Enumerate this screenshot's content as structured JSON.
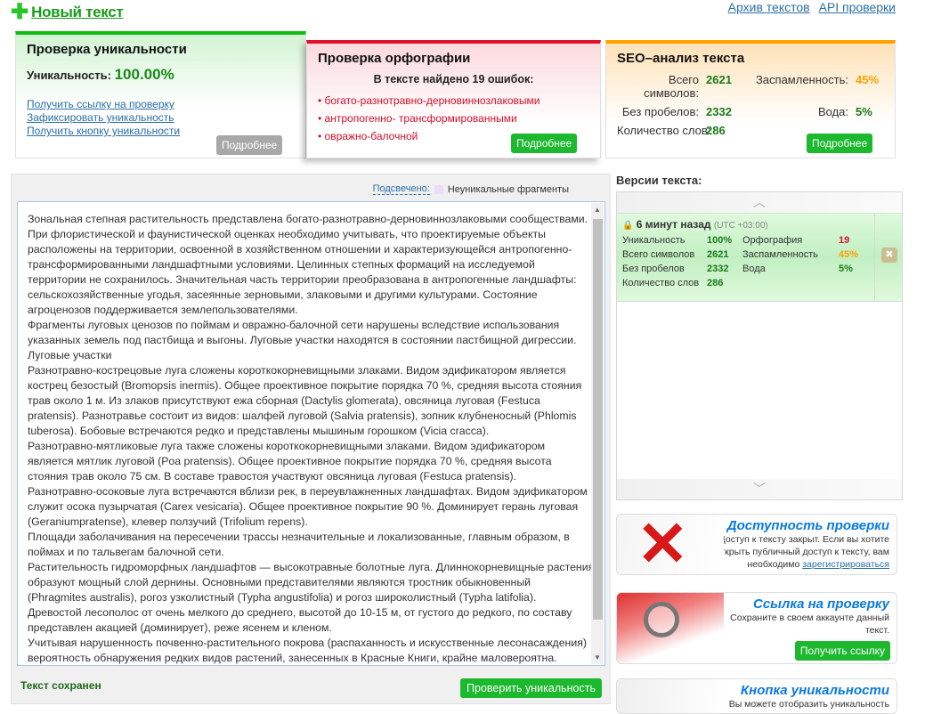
{
  "header": {
    "new_text": "Новый текст",
    "links": [
      "Архив текстов",
      "API проверки"
    ]
  },
  "uniqueness_card": {
    "title": "Проверка уникальности",
    "label": "Уникальность:",
    "value": "100.00%",
    "links": [
      "Получить ссылку на проверку",
      "Зафиксировать уникальность",
      "Получить кнопку уникальности"
    ],
    "more": "Подробнее"
  },
  "spelling_card": {
    "title": "Проверка орфографии",
    "summary": "В тексте найдено 19 ошибок:",
    "errors": [
      "богато-разнотравно-дерновиннозлаковыми",
      "антропогенно- трансформированными",
      "овражно-балочной"
    ],
    "more": "Подробнее"
  },
  "seo_card": {
    "title": "SEO–анализ текста",
    "total_label": "Всего символов:",
    "total": "2621",
    "spam_label": "Заспамленность:",
    "spam": "45%",
    "nospace_label": "Без пробелов:",
    "nospace": "2332",
    "water_label": "Вода:",
    "water": "5%",
    "words_label": "Количество слов:",
    "words": "286",
    "more": "Подробнее"
  },
  "editor": {
    "highlight_label": "Подсвечено:",
    "highlight_legend": "Неуникальные фрагменты",
    "highlight_color": "#ecdcfa",
    "lines": [
      "Зональная степная растительность представлена богато-разнотравно-дерновиннозлаковыми сообществами.",
      "При флористической и фаунистической оценках необходимо учитывать, что проектируемые объекты",
      "расположены на территории, освоенной в хозяйственном отношении и характеризующейся антропогенно-",
      "трансформированными ландшафтными условиями. Целинных степных формаций на исследуемой",
      "территории не сохранилось. Значительная часть территории преобразована в антропогенные ландшафты:",
      "сельскохозяйственные угодья, засеянные зерновыми, злаковыми и другими культурами. Состояние",
      "агроценозов поддерживается землепользователями.",
      "Фрагменты луговых ценозов по поймам и овражно-балочной сети нарушены вследствие использования",
      "указанных земель под пастбища и выгоны. Луговые участки находятся в состоянии пастбищной дигрессии.",
      "Луговые участки",
      "Разнотравно-кострецовые луга сложены короткокорневищными злаками. Видом эдификатором является",
      "кострец безостый (Bromopsis inermis). Общее проективное покрытие порядка 70 %, средняя высота стояния",
      "трав около 1 м. Из злаков присутствуют ежа сборная (Dactylis glomerata), овсяница луговая (Festuca",
      "pratensis). Разнотравье состоит из видов: шалфей луговой (Salvia pratensis), зопник клубненосный (Phlomis",
      "tuberosa). Бобовые встречаются редко и представлены мышиным горошком (Vicia cracca).",
      "Разнотравно-мятликовые луга также сложены короткокорневищными злаками. Видом эдификатором",
      "является мятлик луговой (Poa pratensis). Общее проективное покрытие порядка 70 %, средняя высота",
      "стояния трав около 75 см. В составе травостоя участвуют овсяница луговая (Festuca pratensis).",
      "Разнотравно-осоковые луга встречаются вблизи рек, в переувлажненных ландшафтах. Видом эдификатором",
      "служит осока пузырчатая (Carex vesicaria). Общее проективное покрытие 90 %. Доминирует герань луговая",
      "(Geraniumpratense), клевер ползучий (Trifolium repens).",
      "Площади заболачивания на пересечении трассы незначительные и локализованные, главным образом, в",
      "поймах и по тальвегам балочной сети.",
      "Растительность гидроморфных ландшафтов — высокотравные болотные луга. Длиннокорневищные растения",
      "образуют мощный слой дернины. Основными представителями являются тростник обыкновенный",
      "(Phragmites australis), рогоз узколистный (Typha angustifolia) и рогоз широколистный (Typha latifolia).",
      "Древостой лесополос от очень мелкого до среднего, высотой до 10-15 м, от густого до редкого, по составу",
      "представлен акацией (доминирует), реже ясенем и кленом.",
      "Учитывая нарушенность почвенно-растительного покрова (распаханность и искусственные лесонасаждения)",
      "вероятность обнаружения редких видов растений, занесенных в Красные Книги, крайне маловероятна."
    ],
    "status": "Текст сохранен",
    "check_button": "Проверить уникальность"
  },
  "versions": {
    "title": "Версии текста:",
    "items": [
      {
        "time": "6 минут назад",
        "tz": "(UTC +03:00)",
        "uniq_label": "Уникальность",
        "uniq": "100%",
        "spell_label": "Орфография",
        "spell": "19",
        "total_label": "Всего символов",
        "total": "2621",
        "spam_label": "Заспамленность",
        "spam": "45%",
        "nospace_label": "Без пробелов",
        "nospace": "2332",
        "water_label": "Вода",
        "water": "5%",
        "words_label": "Количество слов",
        "words": "286"
      }
    ]
  },
  "banners": {
    "access": {
      "title": "Доступность проверки",
      "text": "Доступ к тексту закрыт. Если вы хотите открыть публичный доступ к тексту, вам необходимо ",
      "link": "зарегистрироваться"
    },
    "link": {
      "title": "Ссылка на проверку",
      "text": "Сохраните в своем аккаунте данный текст.",
      "button": "Получить ссылку"
    },
    "button": {
      "title": "Кнопка уникальности",
      "text": "Вы можете отобразить уникальность"
    }
  }
}
